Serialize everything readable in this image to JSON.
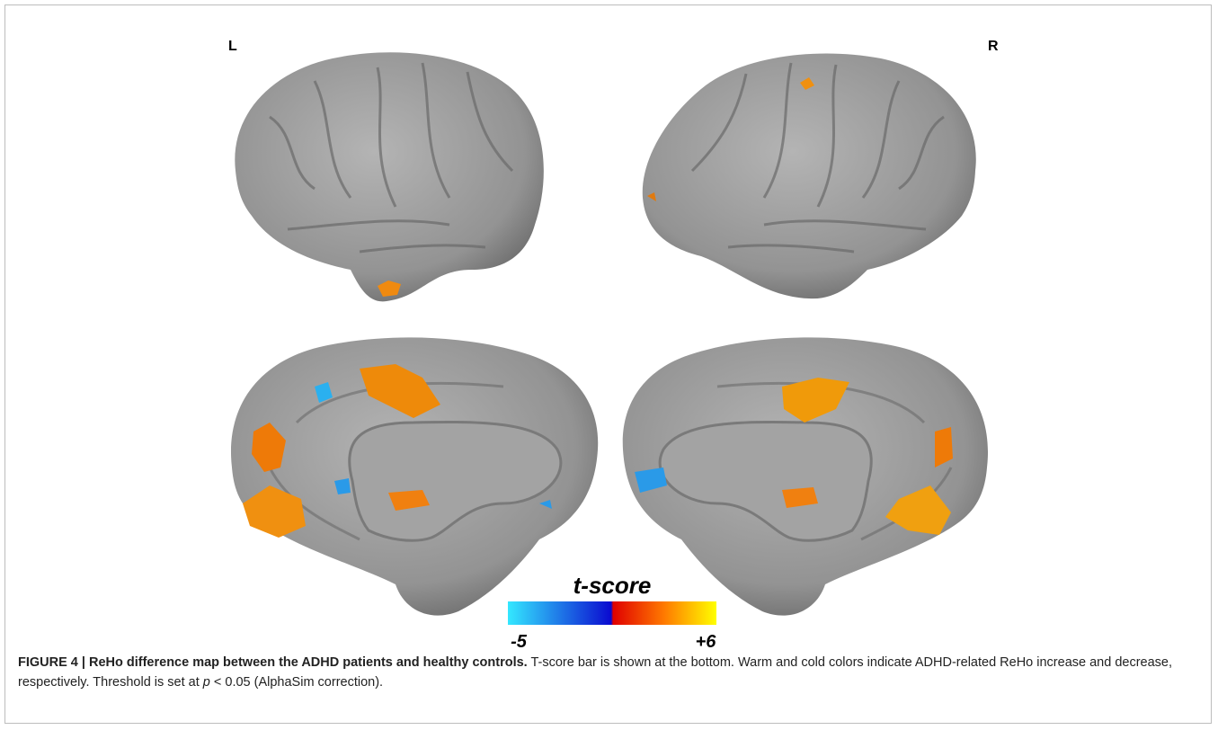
{
  "figure": {
    "labels": {
      "left": "L",
      "right": "R"
    },
    "colorbar": {
      "title": "t-score",
      "min_label": "-5",
      "max_label": "+6"
    }
  },
  "caption": {
    "title": "FIGURE 4 | ReHo difference map between the ADHD patients and healthy controls.",
    "text_1": "T-score bar is shown at the bottom. Warm and cold colors indicate ADHD-related ReHo increase and decrease, respectively. Threshold is set at",
    "italic": "p",
    "text_2": "< 0.05 (AlphaSim correction)."
  }
}
